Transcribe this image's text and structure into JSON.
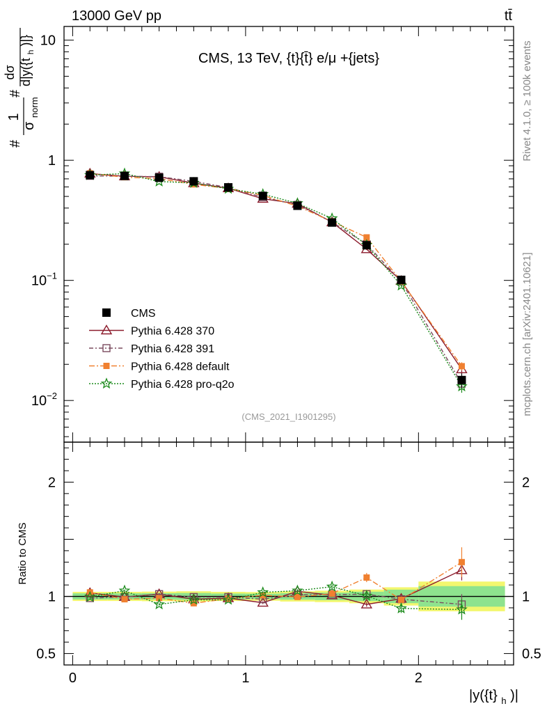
{
  "header": {
    "left": "13000 GeV pp",
    "right": "tt̄"
  },
  "side_labels": {
    "rivet": "Rivet 4.1.0, ≥ 100k events",
    "mcplots": "mcplots.cern.ch [arXiv:2401.10621]"
  },
  "chart_data": [
    {
      "type": "line",
      "yscale": "log",
      "title": "CMS, 13 TeV, {t}{t̄} e/μ +{jets}",
      "watermark": "(CMS_2021_I1901295)",
      "ylabel": "#1/σ_norm #dσ/d|y({t}_h)|}",
      "ylabel_parts": {
        "hash1": "#",
        "one": "1",
        "sigma": "σ",
        "norm": "norm",
        "hash2": "#",
        "dsigma": "dσ",
        "dy": "d|y({t",
        "h": "h",
        "close": ")|}"
      },
      "ylim": [
        0.0045,
        13
      ],
      "xlim": [
        -0.05,
        2.55
      ],
      "y_ticks": [
        {
          "value": 0.01,
          "base": "10",
          "exp": "−2"
        },
        {
          "value": 0.1,
          "base": "10",
          "exp": "−1"
        },
        {
          "value": 1,
          "base": "1",
          "exp": ""
        },
        {
          "value": 10,
          "base": "10",
          "exp": ""
        }
      ],
      "x": [
        0.1,
        0.3,
        0.5,
        0.7,
        0.9,
        1.1,
        1.3,
        1.5,
        1.7,
        1.9,
        2.25
      ],
      "data": {
        "name": "CMS",
        "values": [
          0.752,
          0.74,
          0.715,
          0.668,
          0.595,
          0.505,
          0.418,
          0.303,
          0.196,
          0.101,
          0.0148
        ],
        "errors": [
          0.02,
          0.02,
          0.02,
          0.02,
          0.015,
          0.012,
          0.012,
          0.01,
          0.008,
          0.006,
          0.002
        ]
      },
      "series": [
        {
          "name": "Pythia 6.428 370",
          "color": "#8b1a2b",
          "marker": "triangle-open",
          "dash": "",
          "values": [
            0.775,
            0.735,
            0.728,
            0.645,
            0.585,
            0.478,
            0.435,
            0.305,
            0.182,
            0.099,
            0.0182
          ],
          "errors": [
            0.005,
            0.005,
            0.005,
            0.005,
            0.005,
            0.004,
            0.004,
            0.003,
            0.003,
            0.002,
            0.0015
          ]
        },
        {
          "name": "Pythia 6.428 391",
          "color": "#7a4a5e",
          "marker": "square-open",
          "dash": "6,3,2,3",
          "values": [
            0.742,
            0.735,
            0.73,
            0.668,
            0.592,
            0.492,
            0.425,
            0.306,
            0.2,
            0.098,
            0.0138
          ],
          "errors": [
            0.005,
            0.005,
            0.005,
            0.005,
            0.005,
            0.004,
            0.004,
            0.003,
            0.003,
            0.002,
            0.0015
          ]
        },
        {
          "name": "Pythia 6.428 default",
          "color": "#f08030",
          "marker": "square-filled",
          "dash": "8,3,2,3",
          "values": [
            0.778,
            0.722,
            0.705,
            0.63,
            0.582,
            0.51,
            0.415,
            0.31,
            0.228,
            0.098,
            0.0193
          ],
          "errors": [
            0.005,
            0.005,
            0.005,
            0.005,
            0.005,
            0.004,
            0.004,
            0.003,
            0.003,
            0.002,
            0.0015
          ]
        },
        {
          "name": "Pythia 6.428 pro-q2o",
          "color": "#1a8a1a",
          "marker": "star-open",
          "dash": "2,2",
          "values": [
            0.752,
            0.775,
            0.665,
            0.648,
            0.578,
            0.522,
            0.438,
            0.328,
            0.197,
            0.0905,
            0.0131
          ],
          "errors": [
            0.005,
            0.005,
            0.005,
            0.005,
            0.005,
            0.004,
            0.004,
            0.003,
            0.003,
            0.002,
            0.0015
          ]
        }
      ]
    },
    {
      "type": "line",
      "title": "",
      "ylabel": "Ratio to CMS",
      "xlabel": "|y({t}_h)|",
      "xlabel_parts": {
        "main": "|y({t}",
        "sub": "h",
        "close": ")|"
      },
      "ylim": [
        0.4,
        2.35
      ],
      "y_ticks": [
        {
          "value": 0.5,
          "label": "0.5"
        },
        {
          "value": 1,
          "label": "1"
        },
        {
          "value": 2,
          "label": "2"
        }
      ],
      "x_ticks": [
        {
          "value": 0,
          "label": "0"
        },
        {
          "value": 1,
          "label": "1"
        },
        {
          "value": 2,
          "label": "2"
        }
      ],
      "band_edges": [
        0.0,
        0.2,
        0.4,
        0.6,
        0.8,
        1.0,
        1.2,
        1.4,
        1.6,
        1.8,
        2.0,
        2.5
      ],
      "band_green": [
        0.027,
        0.027,
        0.028,
        0.03,
        0.025,
        0.024,
        0.029,
        0.033,
        0.041,
        0.059,
        0.09
      ],
      "band_yellow": [
        0.04,
        0.04,
        0.042,
        0.045,
        0.04,
        0.038,
        0.045,
        0.05,
        0.06,
        0.08,
        0.13
      ],
      "series": [
        {
          "name": "Pythia 6.428 370",
          "values": [
            1.03,
            0.995,
            1.02,
            0.975,
            0.985,
            0.945,
            1.045,
            1.01,
            0.93,
            0.98,
            1.23
          ],
          "errors": [
            0.01,
            0.01,
            0.01,
            0.01,
            0.01,
            0.012,
            0.012,
            0.015,
            0.02,
            0.03,
            0.09
          ]
        },
        {
          "name": "Pythia 6.428 391",
          "values": [
            0.985,
            0.995,
            1.02,
            0.995,
            0.995,
            0.975,
            1.015,
            1.015,
            1.02,
            0.975,
            0.93
          ],
          "errors": [
            0.01,
            0.01,
            0.01,
            0.01,
            0.01,
            0.012,
            0.012,
            0.015,
            0.02,
            0.03,
            0.09
          ]
        },
        {
          "name": "Pythia 6.428 default",
          "values": [
            1.035,
            0.975,
            0.985,
            0.94,
            0.98,
            1.01,
            0.995,
            1.025,
            1.165,
            0.97,
            1.3
          ],
          "errors": [
            0.01,
            0.01,
            0.01,
            0.01,
            0.01,
            0.012,
            0.012,
            0.015,
            0.04,
            0.03,
            0.13
          ]
        },
        {
          "name": "Pythia 6.428 pro-q2o",
          "values": [
            0.995,
            1.05,
            0.93,
            0.97,
            0.97,
            1.035,
            1.05,
            1.085,
            1.005,
            0.895,
            0.885
          ],
          "errors": [
            0.01,
            0.01,
            0.01,
            0.01,
            0.01,
            0.012,
            0.012,
            0.015,
            0.02,
            0.04,
            0.09
          ]
        }
      ]
    }
  ]
}
